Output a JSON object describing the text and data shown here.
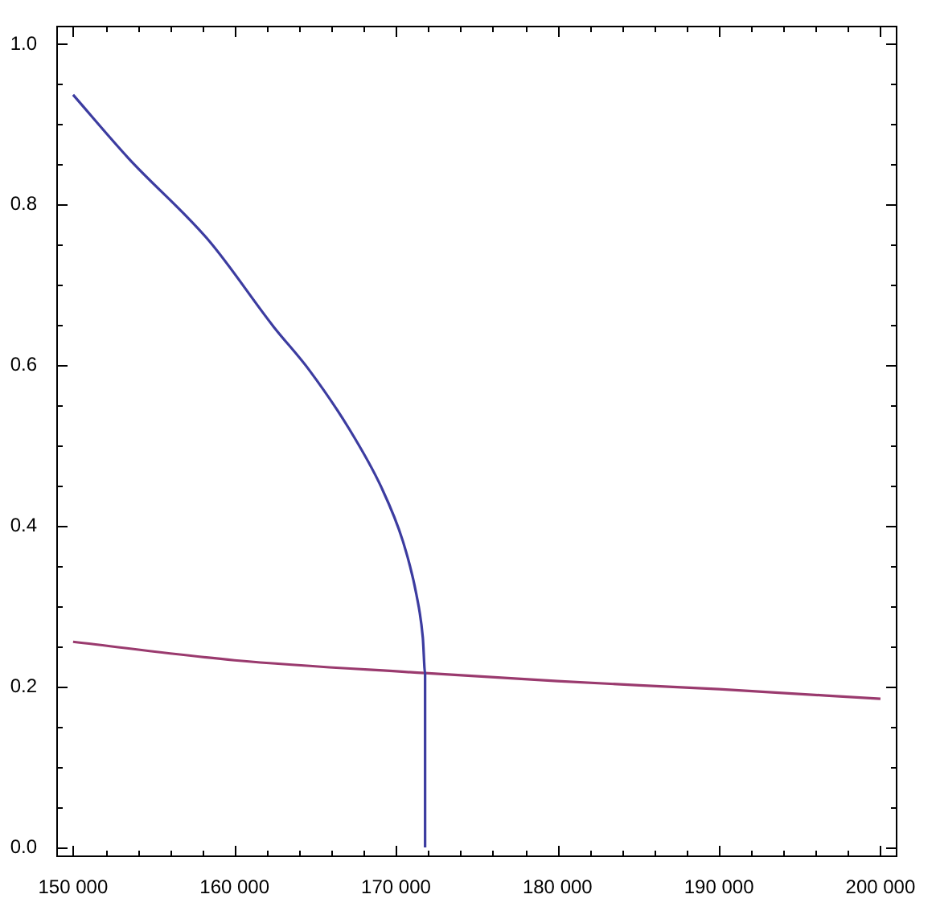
{
  "chart_data": {
    "type": "line",
    "series": [
      {
        "color": "#3c3ca0",
        "x": [
          150000,
          153430,
          158430,
          162430,
          164600,
          167100,
          169100,
          170430,
          171260,
          171660,
          171800,
          171800
        ],
        "values": [
          0.937,
          0.858,
          0.755,
          0.648,
          0.595,
          0.521,
          0.448,
          0.381,
          0.315,
          0.261,
          0.217,
          0
        ]
      },
      {
        "color": "#9a3a6e",
        "x": [
          150000,
          160000,
          171800,
          180000,
          190000,
          200000
        ],
        "values": [
          0.256,
          0.233,
          0.217,
          0.207,
          0.197,
          0.185
        ]
      }
    ],
    "xlim": [
      148960,
      201050
    ],
    "ylim": [
      -0.012,
      1.023
    ],
    "xticks": [
      {
        "value": 150000,
        "label": "150 000"
      },
      {
        "value": 152000,
        "label": null
      },
      {
        "value": 154000,
        "label": null
      },
      {
        "value": 156000,
        "label": null
      },
      {
        "value": 158000,
        "label": null
      },
      {
        "value": 160000,
        "label": "160 000"
      },
      {
        "value": 162000,
        "label": null
      },
      {
        "value": 164000,
        "label": null
      },
      {
        "value": 166000,
        "label": null
      },
      {
        "value": 168000,
        "label": null
      },
      {
        "value": 170000,
        "label": "170 000"
      },
      {
        "value": 172000,
        "label": null
      },
      {
        "value": 174000,
        "label": null
      },
      {
        "value": 176000,
        "label": null
      },
      {
        "value": 178000,
        "label": null
      },
      {
        "value": 180000,
        "label": "180 000"
      },
      {
        "value": 182000,
        "label": null
      },
      {
        "value": 184000,
        "label": null
      },
      {
        "value": 186000,
        "label": null
      },
      {
        "value": 188000,
        "label": null
      },
      {
        "value": 190000,
        "label": "190 000"
      },
      {
        "value": 192000,
        "label": null
      },
      {
        "value": 194000,
        "label": null
      },
      {
        "value": 196000,
        "label": null
      },
      {
        "value": 198000,
        "label": null
      },
      {
        "value": 200000,
        "label": "200 000"
      }
    ],
    "yticks": [
      {
        "value": 0,
        "label": "0.0"
      },
      {
        "value": 0.05,
        "label": null
      },
      {
        "value": 0.1,
        "label": null
      },
      {
        "value": 0.15,
        "label": null
      },
      {
        "value": 0.2,
        "label": "0.2"
      },
      {
        "value": 0.25,
        "label": null
      },
      {
        "value": 0.3,
        "label": null
      },
      {
        "value": 0.35,
        "label": null
      },
      {
        "value": 0.4,
        "label": "0.4"
      },
      {
        "value": 0.45,
        "label": null
      },
      {
        "value": 0.5,
        "label": null
      },
      {
        "value": 0.55,
        "label": null
      },
      {
        "value": 0.6,
        "label": "0.6"
      },
      {
        "value": 0.65,
        "label": null
      },
      {
        "value": 0.7,
        "label": null
      },
      {
        "value": 0.75,
        "label": null
      },
      {
        "value": 0.8,
        "label": "0.8"
      },
      {
        "value": 0.85,
        "label": null
      },
      {
        "value": 0.9,
        "label": null
      },
      {
        "value": 0.95,
        "label": null
      },
      {
        "value": 1.0,
        "label": "1.0"
      }
    ],
    "marker": "none"
  }
}
